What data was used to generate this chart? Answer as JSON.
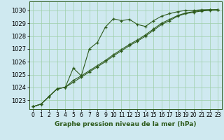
{
  "bg_color": "#cfe9f0",
  "line_color": "#2d5a1b",
  "grid_color": "#9ecfa8",
  "xlabel": "Graphe pression niveau de la mer (hPa)",
  "xlabel_fontsize": 6.5,
  "ylabel_fontsize": 6.0,
  "yticks": [
    1023,
    1024,
    1025,
    1026,
    1027,
    1028,
    1029,
    1030
  ],
  "xticks": [
    0,
    1,
    2,
    3,
    4,
    5,
    6,
    7,
    8,
    9,
    10,
    11,
    12,
    13,
    14,
    15,
    16,
    17,
    18,
    19,
    20,
    21,
    22,
    23
  ],
  "xlim": [
    -0.5,
    23.5
  ],
  "ylim": [
    1022.3,
    1030.7
  ],
  "series": [
    [
      1022.5,
      1022.7,
      1023.3,
      1023.9,
      1024.0,
      1025.5,
      1024.9,
      1027.0,
      1027.5,
      1028.7,
      1029.35,
      1029.2,
      1029.3,
      1028.9,
      1028.75,
      1029.2,
      1029.55,
      1029.75,
      1029.9,
      1030.0,
      1030.0,
      1030.05,
      1030.05,
      1030.05
    ],
    [
      1022.5,
      1022.7,
      1023.3,
      1023.9,
      1024.0,
      1024.55,
      1024.9,
      1025.3,
      1025.7,
      1026.1,
      1026.55,
      1026.95,
      1027.35,
      1027.7,
      1028.1,
      1028.55,
      1029.0,
      1029.3,
      1029.6,
      1029.8,
      1029.9,
      1030.0,
      1030.05,
      1030.05
    ],
    [
      1022.5,
      1022.7,
      1023.3,
      1023.9,
      1024.0,
      1024.4,
      1024.8,
      1025.2,
      1025.6,
      1026.0,
      1026.45,
      1026.85,
      1027.25,
      1027.6,
      1028.0,
      1028.45,
      1028.9,
      1029.2,
      1029.55,
      1029.75,
      1029.85,
      1029.95,
      1030.0,
      1030.05
    ]
  ],
  "marker": "+",
  "markersize": 3.5,
  "linewidth": 0.8,
  "markeredgewidth": 0.9
}
